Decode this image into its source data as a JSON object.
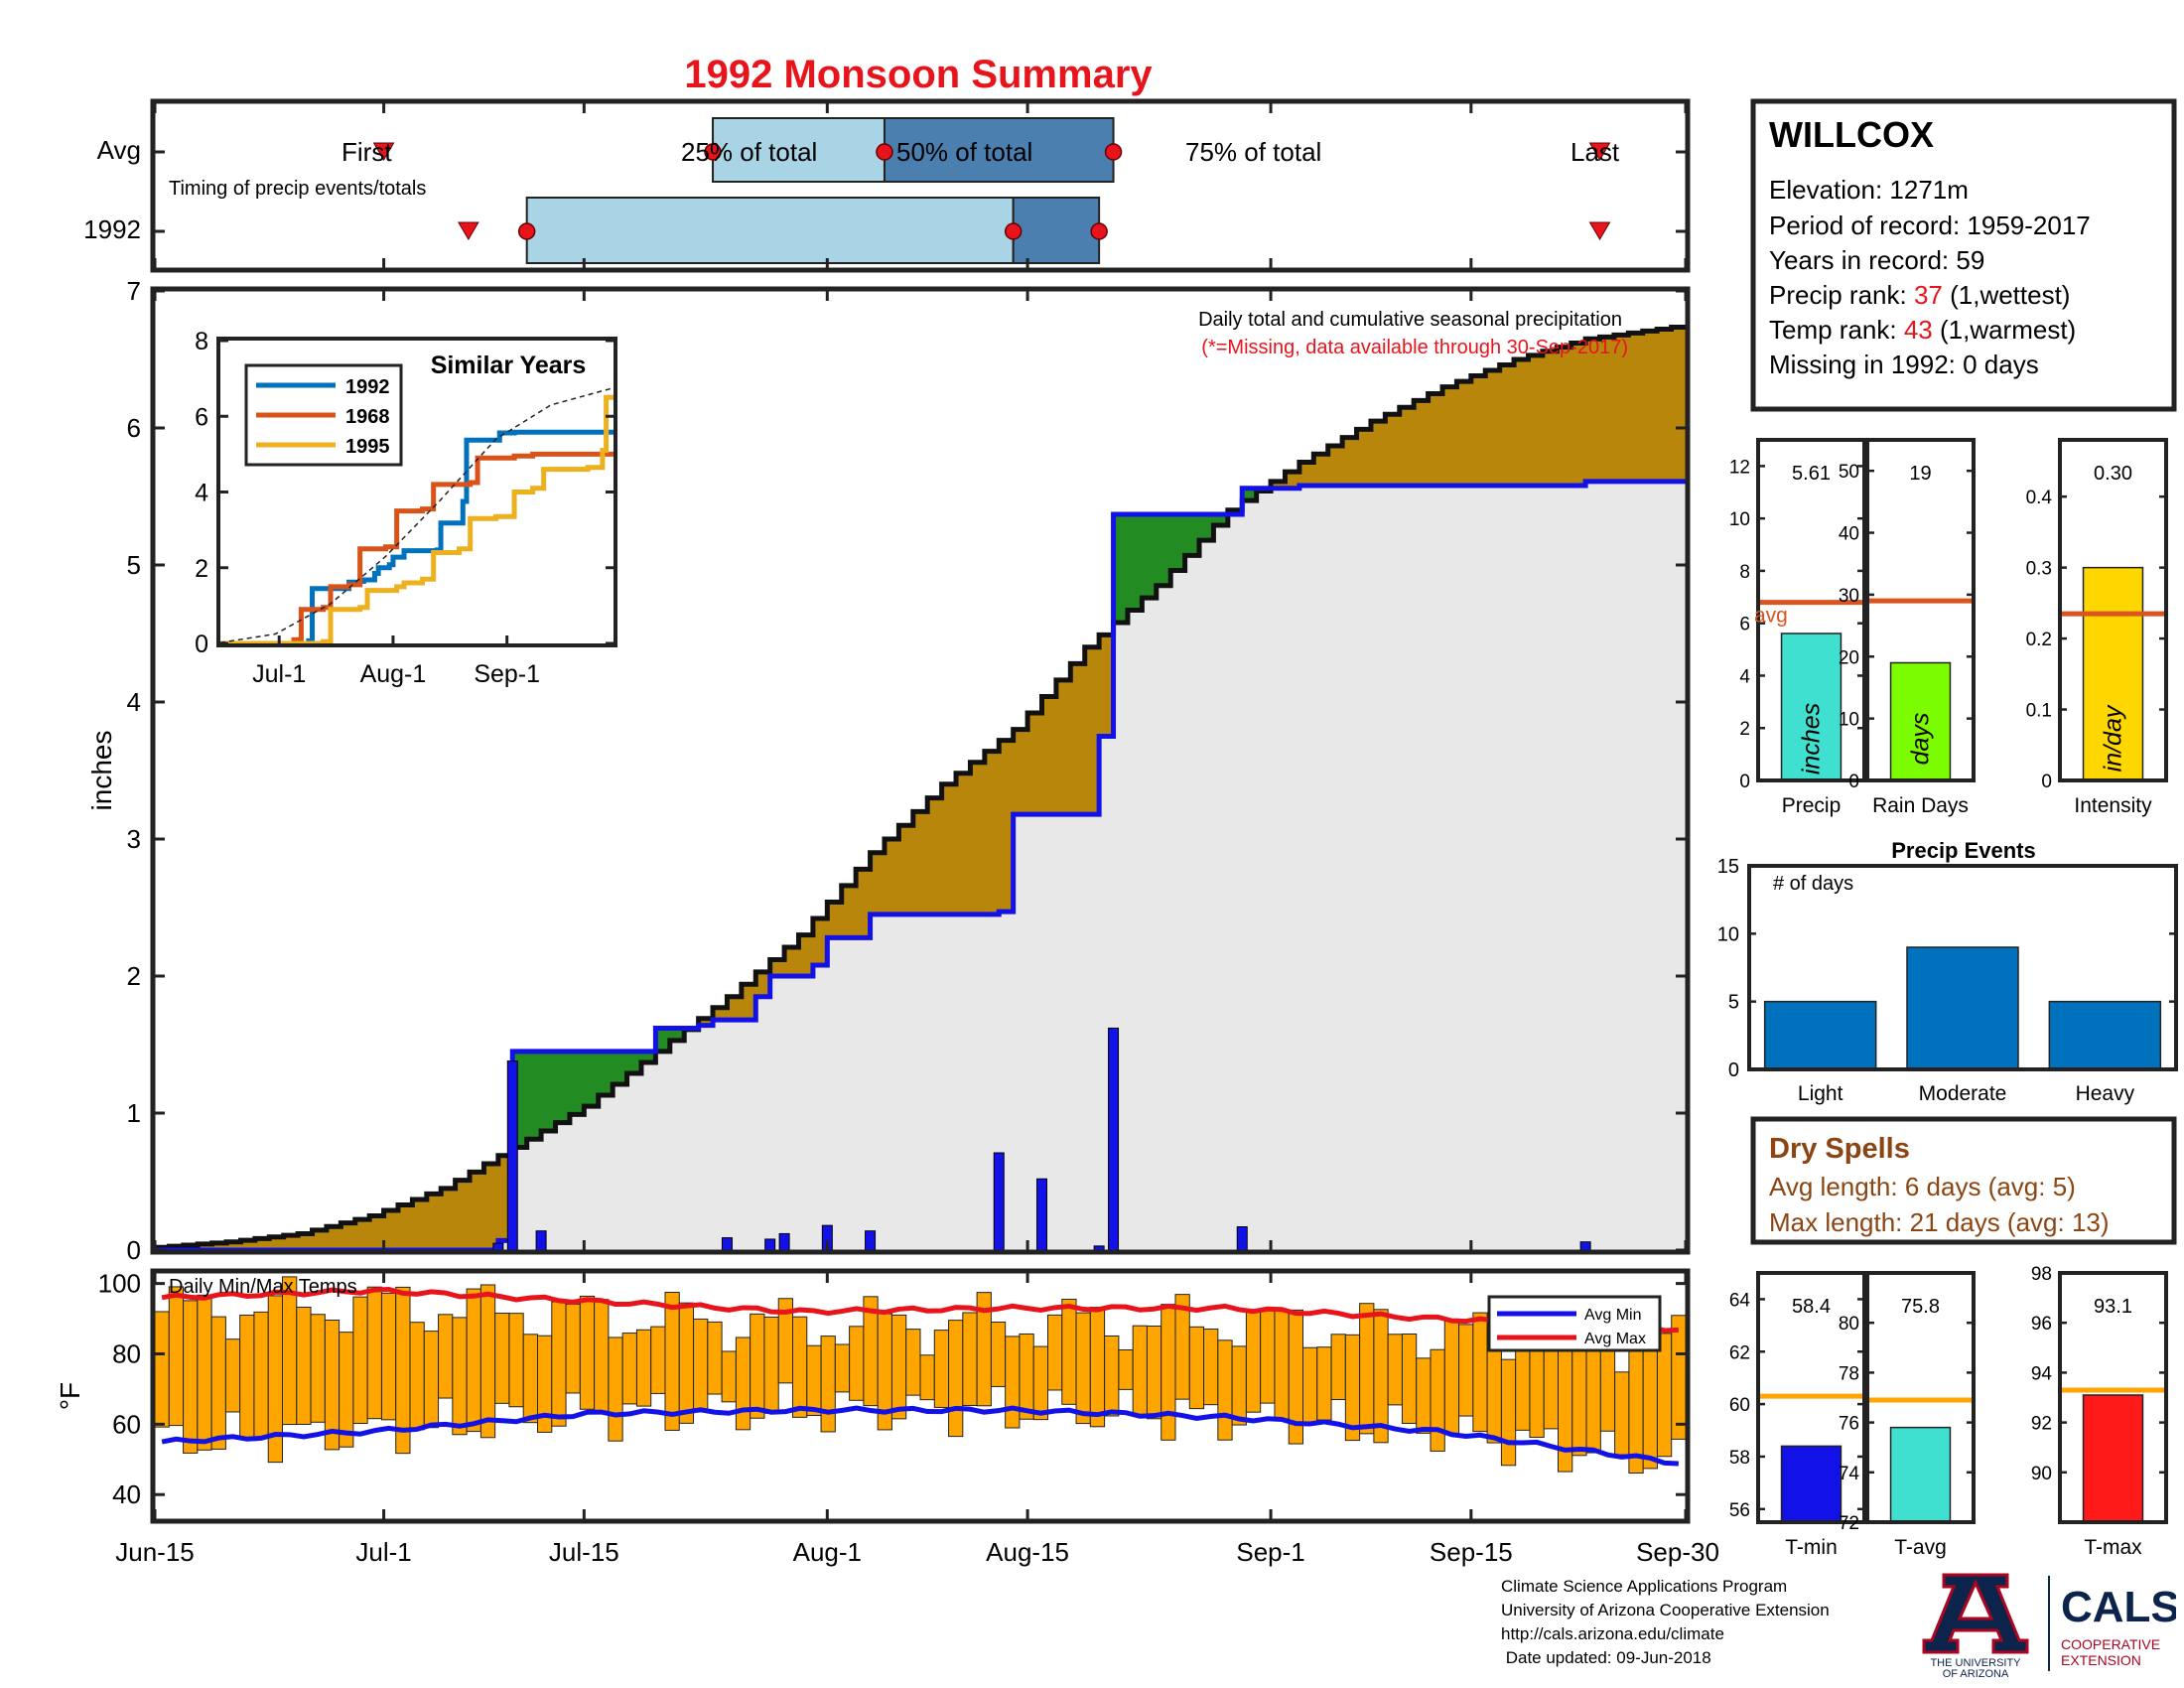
{
  "title": "1992 Monsoon Summary",
  "timing": {
    "avg_label": "Avg",
    "year_label": "1992",
    "caption": "Timing of precip events/totals",
    "first_label": "First",
    "last_label": "Last",
    "p25_label": "25% of total",
    "p50_label": "50% of total",
    "p75_label": "75% of total",
    "avg_days": {
      "first": 16,
      "p25": 39,
      "p50": 51,
      "p75": 67,
      "last": 101
    },
    "year_days": {
      "first": 24,
      "p25": 26,
      "p50": 60,
      "p75": 66,
      "last": 101
    }
  },
  "station": {
    "name": "WILLCOX",
    "elevation": "Elevation: 1271m",
    "period": "Period of record: 1959-2017",
    "years": "Years in record: 59",
    "precip_rank_prefix": "Precip rank: ",
    "precip_rank_value": "37",
    "precip_rank_suffix": " (1,wettest)",
    "temp_rank_prefix": "Temp rank: ",
    "temp_rank_value": "43",
    "temp_rank_suffix": " (1,warmest)",
    "missing": "Missing in 1992: 0 days"
  },
  "main_chart": {
    "notes_line1": "Daily total and cumulative seasonal precipitation",
    "notes_line2": "(*=Missing, data available through 30-Sep-2017)",
    "ylabel": "inches",
    "ylim": [
      0,
      7.0
    ],
    "yticks": [
      "0",
      "1",
      "2",
      "3",
      "4",
      "5",
      "6",
      "7"
    ],
    "xticks": [
      "Jun-15",
      "Jul-1",
      "Jul-15",
      "Aug-1",
      "Aug-15",
      "Sep-1",
      "Sep-15",
      "Sep-30"
    ]
  },
  "chart_data": [
    {
      "type": "area",
      "title": "Daily total and cumulative seasonal precipitation",
      "x_unit": "days since Jun-15 (0 = Jun-15, 107 = Sep-30)",
      "ylabel": "inches",
      "ylim": [
        0,
        7.0
      ],
      "series": [
        {
          "name": "Avg cumulative",
          "x": [
            0,
            5,
            10,
            15,
            20,
            25,
            30,
            35,
            40,
            45,
            50,
            55,
            60,
            65,
            70,
            75,
            80,
            85,
            90,
            95,
            100,
            107
          ],
          "values": [
            0.02,
            0.06,
            0.12,
            0.25,
            0.45,
            0.75,
            1.05,
            1.45,
            1.85,
            2.3,
            2.9,
            3.4,
            3.8,
            4.4,
            4.85,
            5.4,
            5.75,
            6.05,
            6.3,
            6.5,
            6.65,
            6.75
          ]
        },
        {
          "name": "1992 cumulative",
          "x": [
            0,
            24,
            25,
            35,
            38,
            39,
            42,
            43,
            46,
            47,
            50,
            59,
            60,
            66,
            67,
            76,
            80,
            90,
            100,
            107
          ],
          "values": [
            0.0,
            0.07,
            1.45,
            1.62,
            1.64,
            1.68,
            1.85,
            2.0,
            2.08,
            2.28,
            2.45,
            2.47,
            3.18,
            3.75,
            5.37,
            5.56,
            5.58,
            5.58,
            5.61,
            5.61
          ]
        },
        {
          "name": "1992 daily",
          "x": [
            24,
            25,
            27,
            40,
            43,
            44,
            47,
            50,
            59,
            62,
            66,
            67,
            76,
            100
          ],
          "values": [
            0.05,
            1.38,
            0.14,
            0.09,
            0.08,
            0.12,
            0.18,
            0.14,
            0.71,
            0.52,
            0.03,
            1.62,
            0.17,
            0.06
          ]
        }
      ]
    },
    {
      "type": "line",
      "title": "Similar Years",
      "categories": [
        "Jul-1",
        "Aug-1",
        "Sep-1"
      ],
      "ylim": [
        0,
        8
      ],
      "series": [
        {
          "name": "1992",
          "x": [
            0,
            24,
            25,
            35,
            38,
            39,
            42,
            43,
            46,
            47,
            50,
            59,
            60,
            66,
            67,
            76,
            80,
            90,
            107
          ],
          "values": [
            0,
            0.07,
            1.45,
            1.62,
            1.64,
            1.68,
            1.85,
            2.0,
            2.08,
            2.28,
            2.45,
            2.47,
            3.18,
            3.75,
            5.37,
            5.56,
            5.58,
            5.58,
            5.61
          ]
        },
        {
          "name": "1968",
          "x": [
            0,
            20,
            22,
            28,
            30,
            35,
            38,
            45,
            48,
            55,
            58,
            68,
            70,
            80,
            85,
            95,
            107
          ],
          "values": [
            0,
            0.1,
            0.9,
            0.95,
            1.5,
            1.55,
            2.5,
            2.55,
            3.5,
            3.55,
            4.2,
            4.25,
            4.9,
            4.95,
            5.0,
            5.0,
            5.0
          ]
        },
        {
          "name": "1995",
          "x": [
            0,
            28,
            30,
            38,
            40,
            48,
            50,
            55,
            58,
            65,
            68,
            75,
            80,
            85,
            88,
            100,
            104,
            105,
            107
          ],
          "values": [
            0,
            0.05,
            0.9,
            0.95,
            1.4,
            1.5,
            1.6,
            1.7,
            2.4,
            2.5,
            3.3,
            3.35,
            4.0,
            4.1,
            4.6,
            4.65,
            5.1,
            6.5,
            6.5
          ]
        },
        {
          "name": "Avg",
          "x": [
            0,
            15,
            30,
            45,
            60,
            75,
            90,
            107
          ],
          "values": [
            0.02,
            0.25,
            1.05,
            2.3,
            3.8,
            5.4,
            6.3,
            6.75
          ]
        }
      ]
    },
    {
      "type": "bar",
      "title": "Daily Min/Max Temps",
      "ylabel": "°F",
      "ylim": [
        33,
        103
      ],
      "yticks": [
        "40",
        "60",
        "80",
        "100"
      ],
      "series": [
        {
          "name": "Avg Min",
          "x": [
            0,
            15,
            30,
            45,
            60,
            75,
            90,
            107
          ],
          "values": [
            55,
            58,
            63,
            64,
            64,
            62,
            58,
            49
          ]
        },
        {
          "name": "Avg Max",
          "x": [
            0,
            15,
            30,
            45,
            60,
            75,
            90,
            107
          ],
          "values": [
            96,
            98,
            95,
            92,
            93,
            93,
            90,
            87
          ]
        }
      ]
    },
    {
      "type": "bar",
      "title": "Precip",
      "categories": [
        "Precip"
      ],
      "values": [
        5.61
      ],
      "avg": 6.8,
      "ylim": [
        0,
        13
      ],
      "unit": "inches"
    },
    {
      "type": "bar",
      "title": "Rain Days",
      "categories": [
        "Rain Days"
      ],
      "values": [
        19
      ],
      "avg": 29,
      "ylim": [
        0,
        55
      ],
      "unit": "days"
    },
    {
      "type": "bar",
      "title": "Intensity",
      "categories": [
        "Intensity"
      ],
      "values": [
        0.3
      ],
      "avg": 0.235,
      "ylim": [
        0,
        0.48
      ],
      "unit": "in/day"
    },
    {
      "type": "bar",
      "title": "Precip Events",
      "categories": [
        "Light",
        "Moderate",
        "Heavy"
      ],
      "values": [
        5,
        9,
        5
      ],
      "ylim": [
        0,
        15
      ],
      "ylabel": "# of days"
    },
    {
      "type": "bar",
      "title": "T-min",
      "categories": [
        "T-min"
      ],
      "values": [
        58.4
      ],
      "avg": 60.3,
      "ylim": [
        55.5,
        65
      ]
    },
    {
      "type": "bar",
      "title": "T-avg",
      "categories": [
        "T-avg"
      ],
      "values": [
        75.8
      ],
      "avg": 76.9,
      "ylim": [
        72,
        82
      ]
    },
    {
      "type": "bar",
      "title": "T-max",
      "categories": [
        "T-max"
      ],
      "values": [
        93.1
      ],
      "avg": 93.3,
      "ylim": [
        88,
        98
      ]
    }
  ],
  "inset": {
    "title": "Similar Years",
    "yticks": [
      "0",
      "2",
      "4",
      "6",
      "8"
    ],
    "xticks": [
      "Jul-1",
      "Aug-1",
      "Sep-1"
    ],
    "legend": [
      "1992",
      "1968",
      "1995"
    ]
  },
  "temps": {
    "title": "Daily Min/Max Temps",
    "ylabel": "°F",
    "legend_min": "Avg Min",
    "legend_max": "Avg Max"
  },
  "mini": {
    "precip": {
      "value_label": "5.61",
      "xlabel": "Precip",
      "unit": "inches",
      "avg_label": "avg",
      "yticks": [
        "0",
        "2",
        "4",
        "6",
        "8",
        "10",
        "12"
      ]
    },
    "raindays": {
      "value_label": "19",
      "xlabel": "Rain Days",
      "unit": "days",
      "yticks": [
        "0",
        "10",
        "20",
        "30",
        "40",
        "50"
      ]
    },
    "intensity": {
      "value_label": "0.30",
      "xlabel": "Intensity",
      "unit": "in/day",
      "yticks": [
        "0",
        "0.1",
        "0.2",
        "0.3",
        "0.4"
      ]
    },
    "tmin": {
      "value_label": "58.4",
      "xlabel": "T-min",
      "yticks": [
        "56",
        "58",
        "60",
        "62",
        "64"
      ]
    },
    "tavg": {
      "value_label": "75.8",
      "xlabel": "T-avg",
      "yticks": [
        "72",
        "74",
        "76",
        "78",
        "80"
      ]
    },
    "tmax": {
      "value_label": "93.1",
      "xlabel": "T-max",
      "yticks": [
        "90",
        "92",
        "94",
        "96",
        "98"
      ]
    }
  },
  "events": {
    "title": "Precip Events",
    "ylabel": "# of days",
    "yticks": [
      "0",
      "5",
      "10",
      "15"
    ]
  },
  "dry_spells": {
    "title": "Dry Spells",
    "avg_length": "Avg length: 6 days (avg: 5)",
    "max_length": "Max length: 21 days (avg: 13)"
  },
  "footer": {
    "line1": "Climate Science Applications Program",
    "line2": "University of Arizona Cooperative Extension",
    "line3": "http://cals.arizona.edu/climate",
    "line4": " Date updated: 09-Jun-2018"
  },
  "logos": {
    "ua_line1": "THE UNIVERSITY",
    "ua_line2": "OF ARIZONA",
    "cals": "CALS",
    "cals_line1": "COOPERATIVE",
    "cals_line2": "EXTENSION"
  },
  "colors": {
    "title_red": "#e8141c",
    "avg_fill": "#b8860b",
    "green_fill": "#228b22",
    "gray_fill": "#e8e8e8",
    "year_line": "#1212e8",
    "light_blue": "#a8d4e6",
    "mid_blue": "#4a7fb0",
    "precip_bar": "#40e0d0",
    "raindays_bar": "#7cfc00",
    "intensity_bar": "#ffd700",
    "avg_line_orange": "#d9541e",
    "temp_bar": "#ffa500",
    "dry_brown": "#8b4513"
  }
}
